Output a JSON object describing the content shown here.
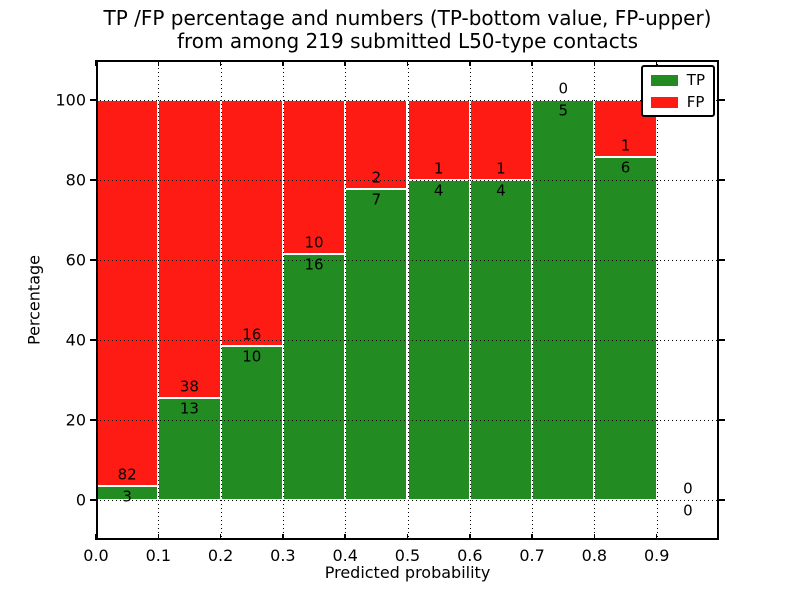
{
  "chart_data": {
    "type": "bar",
    "stacked": true,
    "title": "TP /FP percentage and numbers (TP-bottom value, FP-upper)",
    "subtitle": "from among 219 submitted L50-type contacts",
    "xlabel": "Predicted probability",
    "ylabel": "Percentage",
    "xlim": [
      0.0,
      1.0
    ],
    "ylim": [
      -10,
      110
    ],
    "grid": true,
    "legend_position": "upper right",
    "bin_edges": [
      0.0,
      0.1,
      0.2,
      0.3,
      0.4,
      0.5,
      0.6,
      0.7,
      0.8,
      0.9,
      1.0
    ],
    "xticks": [
      {
        "label": "0.0",
        "value": 0.0
      },
      {
        "label": "0.1",
        "value": 0.1
      },
      {
        "label": "0.2",
        "value": 0.2
      },
      {
        "label": "0.3",
        "value": 0.3
      },
      {
        "label": "0.4",
        "value": 0.4
      },
      {
        "label": "0.5",
        "value": 0.5
      },
      {
        "label": "0.6",
        "value": 0.6
      },
      {
        "label": "0.7",
        "value": 0.7
      },
      {
        "label": "0.8",
        "value": 0.8
      },
      {
        "label": "0.9",
        "value": 0.9
      }
    ],
    "yticks": [
      0,
      20,
      40,
      60,
      80,
      100
    ],
    "series": [
      {
        "name": "TP",
        "color": "#228B22",
        "values": [
          3,
          13,
          10,
          16,
          7,
          4,
          4,
          5,
          6,
          0
        ]
      },
      {
        "name": "FP",
        "color": "#FE1B14",
        "values": [
          82,
          38,
          16,
          10,
          2,
          1,
          1,
          0,
          1,
          0
        ]
      }
    ]
  }
}
